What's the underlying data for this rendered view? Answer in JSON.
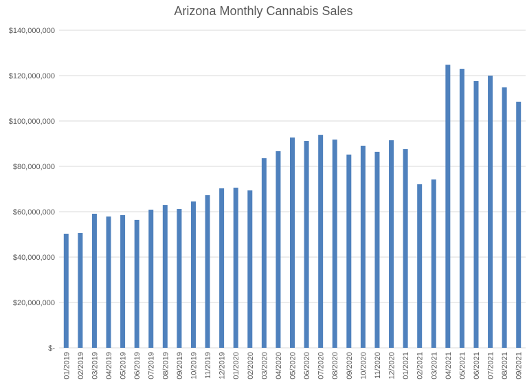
{
  "chart_data": {
    "type": "bar",
    "title": "Arizona Monthly Cannabis Sales",
    "xlabel": "",
    "ylabel": "",
    "ylim": [
      0,
      140000000
    ],
    "grid": true,
    "color": "#4F81BD",
    "yticks": [
      0,
      20000000,
      40000000,
      60000000,
      80000000,
      100000000,
      120000000,
      140000000
    ],
    "ytick_labels": [
      "$-",
      "$20,000,000",
      "$40,000,000",
      "$60,000,000",
      "$80,000,000",
      "$100,000,000",
      "$120,000,000",
      "$140,000,000"
    ],
    "categories": [
      "01/2019",
      "02/2019",
      "03/2019",
      "04/2019",
      "05/2019",
      "06/2019",
      "07/2019",
      "08/2019",
      "09/2019",
      "10/2019",
      "11/2019",
      "12/2019",
      "01/2020",
      "02/2020",
      "03/2020",
      "04/2020",
      "05/2020",
      "06/2020",
      "07/2020",
      "08/2020",
      "09/2020",
      "10/2020",
      "11/2020",
      "12/2020",
      "01/2021",
      "02/2021",
      "03/2021",
      "04/2021",
      "05/2021",
      "06/2021",
      "07/2021",
      "08/2021",
      "09/2021"
    ],
    "values": [
      50300000,
      50600000,
      59100000,
      57900000,
      58500000,
      56400000,
      60900000,
      63000000,
      61200000,
      64500000,
      67300000,
      70300000,
      70600000,
      69400000,
      83600000,
      86700000,
      92700000,
      91200000,
      93900000,
      91800000,
      85200000,
      89100000,
      86400000,
      91500000,
      87600000,
      72100000,
      74200000,
      124800000,
      123000000,
      117600000,
      120000000,
      114800000,
      108500000
    ]
  }
}
